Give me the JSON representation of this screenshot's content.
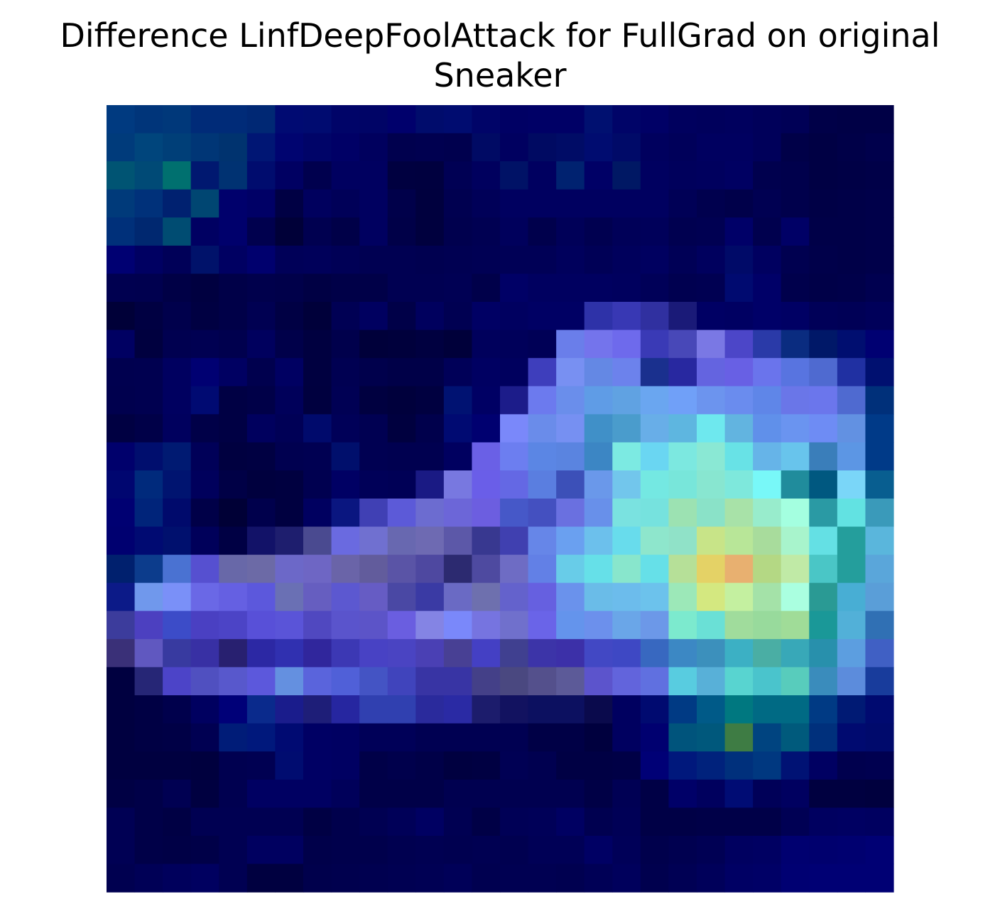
{
  "chart_data": {
    "type": "heatmap",
    "title_lines": [
      "Difference LinfDeepFoolAttack for FullGrad on original",
      "Sneaker"
    ],
    "rows": 28,
    "cols": 28,
    "axes_visible": false,
    "colorbar": false,
    "cells": [
      [
        "#003a80",
        "#00357a",
        "#00387a",
        "#002b78",
        "#002b78",
        "#002874",
        "#000a72",
        "#000b70",
        "#000468",
        "#000466",
        "#00006c",
        "#000c6c",
        "#000c70",
        "#000468",
        "#000064",
        "#000066",
        "#000066",
        "#001070",
        "#000468",
        "#000066",
        "#00005e",
        "#00005c",
        "#00005e",
        "#00005a",
        "#000056",
        "#000048",
        "#000046",
        "#000046"
      ],
      [
        "#003b7b",
        "#00457c",
        "#003f78",
        "#003676",
        "#00336f",
        "#001674",
        "#000470",
        "#000468",
        "#000066",
        "#00005e",
        "#00004e",
        "#000050",
        "#00004e",
        "#000a64",
        "#000060",
        "#000a62",
        "#000c66",
        "#000c70",
        "#000a68",
        "#00005e",
        "#00005a",
        "#000060",
        "#000060",
        "#00005a",
        "#000048",
        "#000044",
        "#000048",
        "#00004c"
      ],
      [
        "#005473",
        "#004a76",
        "#00706f",
        "#001870",
        "#003272",
        "#000c6e",
        "#000062",
        "#00004e",
        "#000060",
        "#000060",
        "#000040",
        "#00003f",
        "#000054",
        "#00005e",
        "#001266",
        "#000060",
        "#002270",
        "#000066",
        "#001864",
        "#000060",
        "#00005c",
        "#00005e",
        "#000062",
        "#00004e",
        "#00004c",
        "#000044",
        "#000046",
        "#000048"
      ],
      [
        "#003a7a",
        "#00317a",
        "#002170",
        "#004672",
        "#00006c",
        "#000066",
        "#000044",
        "#00005e",
        "#000058",
        "#000060",
        "#00004a",
        "#00003e",
        "#000050",
        "#000058",
        "#000060",
        "#000060",
        "#000060",
        "#000060",
        "#000060",
        "#000060",
        "#000056",
        "#00004e",
        "#00004a",
        "#000052",
        "#00004c",
        "#000046",
        "#000048",
        "#00004a"
      ],
      [
        "#00307a",
        "#002870",
        "#004c72",
        "#000062",
        "#00006c",
        "#00004e",
        "#000038",
        "#000050",
        "#000048",
        "#000060",
        "#000048",
        "#00003e",
        "#00004e",
        "#000052",
        "#00005c",
        "#00004c",
        "#000058",
        "#000050",
        "#000058",
        "#00005a",
        "#000050",
        "#000052",
        "#000068",
        "#00004e",
        "#000066",
        "#000048",
        "#000048",
        "#00004a"
      ],
      [
        "#000072",
        "#000062",
        "#000058",
        "#00126a",
        "#000062",
        "#00006e",
        "#000058",
        "#00005a",
        "#000056",
        "#000052",
        "#000052",
        "#000050",
        "#000052",
        "#000054",
        "#000056",
        "#000056",
        "#00005c",
        "#000056",
        "#00005c",
        "#000060",
        "#000056",
        "#00005e",
        "#000a68",
        "#000060",
        "#000050",
        "#00004a",
        "#000048",
        "#00004a"
      ],
      [
        "#000050",
        "#00004f",
        "#000046",
        "#000040",
        "#000048",
        "#00004c",
        "#00004a",
        "#000044",
        "#000048",
        "#000048",
        "#000052",
        "#000052",
        "#000054",
        "#00004a",
        "#000066",
        "#000060",
        "#000060",
        "#000060",
        "#00005e",
        "#000058",
        "#000050",
        "#000052",
        "#000a70",
        "#000068",
        "#00004c",
        "#000048",
        "#00004a",
        "#000050"
      ],
      [
        "#000038",
        "#000042",
        "#00004c",
        "#000042",
        "#000048",
        "#000052",
        "#000044",
        "#00003a",
        "#000054",
        "#000060",
        "#000048",
        "#00005e",
        "#000052",
        "#000064",
        "#000060",
        "#000064",
        "#000064",
        "#2e32a8",
        "#3838b4",
        "#3030a0",
        "#1a1a78",
        "#000064",
        "#000062",
        "#000068",
        "#000064",
        "#000058",
        "#000056",
        "#00005a"
      ],
      [
        "#000062",
        "#00003f",
        "#000050",
        "#000052",
        "#00004e",
        "#00005e",
        "#00004a",
        "#000040",
        "#00004c",
        "#00003a",
        "#00003c",
        "#000040",
        "#00003a",
        "#00005c",
        "#00005a",
        "#000056",
        "#6a7eea",
        "#7474ec",
        "#6e6aec",
        "#3a3ab6",
        "#4848b8",
        "#7a78e4",
        "#4c46c8",
        "#2a3aa8",
        "#0a2c80",
        "#001868",
        "#000e70",
        "#000072"
      ],
      [
        "#00004f",
        "#000050",
        "#000060",
        "#000072",
        "#000062",
        "#00004e",
        "#000062",
        "#000040",
        "#000052",
        "#00004c",
        "#000048",
        "#000048",
        "#000058",
        "#000062",
        "#00005e",
        "#3e3ebc",
        "#7890f2",
        "#6488e4",
        "#6c82ec",
        "#1a308e",
        "#2828a0",
        "#6464e0",
        "#6860e4",
        "#6a74ec",
        "#5874e0",
        "#4f6ad0",
        "#2030a2",
        "#001070"
      ],
      [
        "#00004e",
        "#000050",
        "#000060",
        "#000a72",
        "#000044",
        "#000048",
        "#00005a",
        "#00003f",
        "#000054",
        "#000040",
        "#00003c",
        "#000040",
        "#001272",
        "#000064",
        "#1c1c8a",
        "#6c7aee",
        "#6a8eeb",
        "#5f9ce6",
        "#60a2e2",
        "#6aa6f0",
        "#70a0f8",
        "#6c94ee",
        "#6a8cee",
        "#5f86e8",
        "#6a76e8",
        "#6b76ec",
        "#4f6ad0",
        "#00307a"
      ],
      [
        "#000042",
        "#000048",
        "#00005e",
        "#000048",
        "#000044",
        "#00005e",
        "#000056",
        "#000a6c",
        "#000058",
        "#000052",
        "#00003f",
        "#00004c",
        "#000a72",
        "#000070",
        "#7a88fa",
        "#6a8cea",
        "#7690f2",
        "#4090c8",
        "#4a9ccc",
        "#68aee8",
        "#5eb6e0",
        "#6ee8ee",
        "#62b4e0",
        "#6090ea",
        "#6a94f0",
        "#6e8cf4",
        "#6291e2",
        "#003a88"
      ],
      [
        "#00006c",
        "#000e6e",
        "#001a72",
        "#000058",
        "#000040",
        "#000042",
        "#000050",
        "#000052",
        "#000f6c",
        "#000052",
        "#000050",
        "#000050",
        "#000060",
        "#6a60e6",
        "#6c7ef0",
        "#5b86e4",
        "#5a84e0",
        "#3c86c4",
        "#7ceae2",
        "#6ad6f2",
        "#7ce8e0",
        "#8ae8d4",
        "#68e2e6",
        "#66b4e8",
        "#68c4ec",
        "#3a7eba",
        "#5c96e4",
        "#003a88"
      ],
      [
        "#000670",
        "#002a7c",
        "#001470",
        "#00005c",
        "#000046",
        "#00003e",
        "#000040",
        "#000050",
        "#000064",
        "#000058",
        "#000056",
        "#1a1a84",
        "#7878e0",
        "#6a5ee8",
        "#6468e4",
        "#5a7ee0",
        "#3c50b8",
        "#6a98ea",
        "#72c6ec",
        "#74e8e2",
        "#78e6da",
        "#88e6d0",
        "#7ee8dc",
        "#78f8f8",
        "#208c9c",
        "#005880",
        "#7ad6f8",
        "#085e90"
      ],
      [
        "#000072",
        "#00247a",
        "#000a6c",
        "#000048",
        "#000036",
        "#00004c",
        "#000040",
        "#000060",
        "#0a1680",
        "#4040b4",
        "#5c5ad8",
        "#6c6cd0",
        "#6c66d8",
        "#6c5ee0",
        "#4658c8",
        "#4450c0",
        "#6a70e0",
        "#6890ea",
        "#7ae2e0",
        "#76e2de",
        "#9ce2b2",
        "#8ae2c8",
        "#a8e2a8",
        "#98eccc",
        "#a4ffe0",
        "#2a9aa4",
        "#62e2e2",
        "#3a9aba"
      ],
      [
        "#000070",
        "#000a72",
        "#00106e",
        "#00005a",
        "#000044",
        "#121268",
        "#1e1e6e",
        "#4a4a90",
        "#6a6ae0",
        "#7070d0",
        "#6868b0",
        "#6e6ab2",
        "#5c58a8",
        "#383890",
        "#4040b0",
        "#6686e8",
        "#6aa0f0",
        "#6cc0ec",
        "#68dcec",
        "#8ee6cc",
        "#90e2c8",
        "#c8e488",
        "#b8e698",
        "#a8dc9c",
        "#a8f4cc",
        "#64e0e4",
        "#249e9c",
        "#5ab6dc"
      ],
      [
        "#00206e",
        "#0c3c8c",
        "#4a72d2",
        "#5650d0",
        "#6868a8",
        "#6c6aa6",
        "#6c68c8",
        "#6e66c4",
        "#6a64a8",
        "#625c9c",
        "#5a54a6",
        "#4e48a0",
        "#2c2a70",
        "#4e4aa0",
        "#6e6cc4",
        "#6280e6",
        "#68cce8",
        "#66e0e8",
        "#88e6cc",
        "#66e0e8",
        "#b6e098",
        "#e4d266",
        "#e8b070",
        "#b4d884",
        "#c0eaa6",
        "#4ac6c6",
        "#249e9c",
        "#5aa6da"
      ],
      [
        "#0c1a88",
        "#7098ec",
        "#7a90f8",
        "#6a68e6",
        "#6560e2",
        "#5c58dc",
        "#6a70b4",
        "#665ec0",
        "#5c58d0",
        "#665cc4",
        "#4a48a4",
        "#3a3aa4",
        "#6a6ac4",
        "#6e70ae",
        "#6462cc",
        "#6660e0",
        "#6a92ec",
        "#6abce8",
        "#6cbcec",
        "#6cc2ec",
        "#9ce8b8",
        "#d4e880",
        "#c4f0a0",
        "#a4e2a8",
        "#aaffe0",
        "#2a9a94",
        "#48aed4",
        "#5a9ed8"
      ],
      [
        "#3c3c9c",
        "#4c40c0",
        "#3c4cc8",
        "#4a40c2",
        "#4c44c6",
        "#5850d8",
        "#5a54d8",
        "#5048c0",
        "#5a54cc",
        "#5c54c8",
        "#6a5ee0",
        "#8484e4",
        "#7a88fa",
        "#7674e0",
        "#7070cc",
        "#6a64e8",
        "#6494ec",
        "#6c90ec",
        "#6aa6e8",
        "#6c98e8",
        "#7ceace",
        "#6ae0d6",
        "#a0dc9c",
        "#98da9c",
        "#a0dc98",
        "#1a9898",
        "#52b0d8",
        "#3070b4"
      ],
      [
        "#3a3078",
        "#6058c0",
        "#383aa0",
        "#3830a4",
        "#282070",
        "#2c28a4",
        "#3030b0",
        "#30269c",
        "#3c38b4",
        "#4842c4",
        "#4a44c2",
        "#4a40b4",
        "#484094",
        "#4440c4",
        "#404090",
        "#3c34a8",
        "#3c30a8",
        "#4248c4",
        "#3e48c4",
        "#3868c0",
        "#3c88c4",
        "#3c90bc",
        "#3cb0c4",
        "#4aaea4",
        "#38a8b8",
        "#2890ac",
        "#5c9ee0",
        "#4060c4"
      ],
      [
        "#000040",
        "#262676",
        "#4c44c8",
        "#5050c0",
        "#5858cc",
        "#5c58dc",
        "#6490e0",
        "#5a64dc",
        "#5060d8",
        "#4454c4",
        "#4044bc",
        "#3834a4",
        "#3834a4",
        "#444088",
        "#4a4880",
        "#54508c",
        "#5c5a98",
        "#5c54cc",
        "#6264dc",
        "#6070e0",
        "#58cce0",
        "#58b0d8",
        "#58d4d0",
        "#4ac4cc",
        "#58ccbc",
        "#3a8cbc",
        "#5c8cdc",
        "#183c9c"
      ],
      [
        "#000040",
        "#000044",
        "#00004c",
        "#000060",
        "#000078",
        "#0a2a8c",
        "#1a1c8c",
        "#1e1e78",
        "#2626a0",
        "#3040b0",
        "#3040b0",
        "#2a2a9c",
        "#2a2aa4",
        "#1c1c6c",
        "#121260",
        "#0c1060",
        "#0c1060",
        "#0a0a4c",
        "#000060",
        "#000a70",
        "#003a84",
        "#005a88",
        "#007880",
        "#006a84",
        "#006a84",
        "#003a84",
        "#001a74",
        "#000a70"
      ],
      [
        "#000040",
        "#000044",
        "#000046",
        "#000052",
        "#001c78",
        "#00187c",
        "#000a72",
        "#000064",
        "#000062",
        "#000058",
        "#000058",
        "#000052",
        "#000052",
        "#000052",
        "#000052",
        "#000046",
        "#000046",
        "#00003e",
        "#000060",
        "#000070",
        "#00547c",
        "#00587c",
        "#3e7c44",
        "#004480",
        "#005a7c",
        "#00307c",
        "#000a70",
        "#000a6c"
      ],
      [
        "#000040",
        "#000040",
        "#000040",
        "#00003e",
        "#000050",
        "#000052",
        "#000c70",
        "#000064",
        "#000062",
        "#000048",
        "#00004c",
        "#000048",
        "#000040",
        "#000042",
        "#000054",
        "#000050",
        "#000044",
        "#000044",
        "#000046",
        "#000076",
        "#00187c",
        "#00227c",
        "#00307c",
        "#003880",
        "#001274",
        "#000062",
        "#00004e",
        "#000050"
      ],
      [
        "#000044",
        "#000048",
        "#000052",
        "#000040",
        "#000050",
        "#000062",
        "#000062",
        "#000062",
        "#00005a",
        "#000048",
        "#000048",
        "#000048",
        "#000050",
        "#000050",
        "#000050",
        "#000050",
        "#000050",
        "#000046",
        "#000054",
        "#000046",
        "#000068",
        "#00005e",
        "#000c74",
        "#000058",
        "#000060",
        "#000040",
        "#000040",
        "#00003e"
      ],
      [
        "#000054",
        "#000048",
        "#000044",
        "#000052",
        "#000052",
        "#000052",
        "#000052",
        "#000044",
        "#00004c",
        "#000052",
        "#000058",
        "#000062",
        "#000052",
        "#000046",
        "#000056",
        "#000058",
        "#000062",
        "#000050",
        "#000056",
        "#000046",
        "#000046",
        "#000048",
        "#000048",
        "#000048",
        "#000054",
        "#000060",
        "#000062",
        "#000060"
      ],
      [
        "#000054",
        "#000048",
        "#000046",
        "#000048",
        "#000052",
        "#000060",
        "#000060",
        "#00004a",
        "#00004c",
        "#00004c",
        "#000050",
        "#000052",
        "#000050",
        "#000052",
        "#000050",
        "#000056",
        "#000056",
        "#000064",
        "#000058",
        "#00004c",
        "#000050",
        "#000054",
        "#000060",
        "#000062",
        "#000070",
        "#00006e",
        "#000070",
        "#000074"
      ],
      [
        "#000050",
        "#000056",
        "#00005c",
        "#000060",
        "#000052",
        "#000040",
        "#000040",
        "#00004c",
        "#00004e",
        "#000050",
        "#000052",
        "#000054",
        "#000058",
        "#000050",
        "#000052",
        "#000052",
        "#000050",
        "#000056",
        "#00005c",
        "#00004e",
        "#000054",
        "#00005a",
        "#000064",
        "#000066",
        "#000072",
        "#000074",
        "#000074",
        "#000074"
      ]
    ]
  }
}
